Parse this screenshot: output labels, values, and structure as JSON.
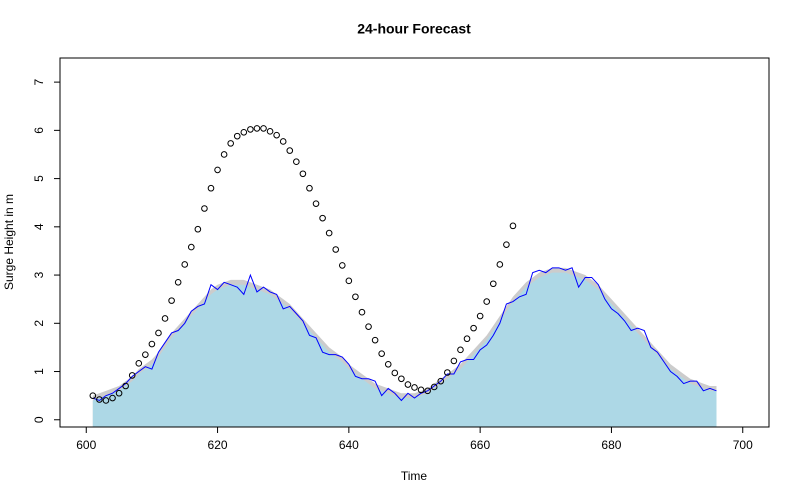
{
  "chart_data": {
    "type": "line",
    "title": "24-hour Forecast",
    "x_label": "Time",
    "y_label": "Surge Height in m",
    "xlim": [
      596,
      704
    ],
    "xticks": [
      600,
      620,
      640,
      660,
      680,
      700
    ],
    "ylim": [
      -0.15,
      7.5
    ],
    "yticks": [
      0,
      1,
      2,
      3,
      4,
      5,
      6,
      7
    ],
    "x": [
      601,
      602,
      603,
      604,
      605,
      606,
      607,
      608,
      609,
      610,
      611,
      612,
      613,
      614,
      615,
      616,
      617,
      618,
      619,
      620,
      621,
      622,
      623,
      624,
      625,
      626,
      627,
      628,
      629,
      630,
      631,
      632,
      633,
      634,
      635,
      636,
      637,
      638,
      639,
      640,
      641,
      642,
      643,
      644,
      645,
      646,
      647,
      648,
      649,
      650,
      651,
      652,
      653,
      654,
      655,
      656,
      657,
      658,
      659,
      660,
      661,
      662,
      663,
      664,
      665,
      666,
      667,
      668,
      669,
      670,
      671,
      672,
      673,
      674,
      675,
      676,
      677,
      678,
      679,
      680,
      681,
      682,
      683,
      684,
      685,
      686,
      687,
      688,
      689,
      690,
      691,
      692,
      693,
      694,
      695,
      696
    ],
    "series": [
      {
        "kind": "area",
        "color": "#cccccc",
        "values": [
          0.5,
          0.55,
          0.6,
          0.65,
          0.7,
          0.8,
          0.9,
          1.05,
          1.15,
          1.25,
          1.4,
          1.6,
          1.8,
          1.95,
          2.1,
          2.25,
          2.4,
          2.55,
          2.7,
          2.8,
          2.85,
          2.9,
          2.9,
          2.9,
          2.85,
          2.8,
          2.75,
          2.7,
          2.6,
          2.5,
          2.4,
          2.25,
          2.1,
          1.95,
          1.8,
          1.65,
          1.5,
          1.4,
          1.3,
          1.15,
          1.05,
          0.95,
          0.85,
          0.75,
          0.7,
          0.65,
          0.6,
          0.55,
          0.55,
          0.55,
          0.6,
          0.65,
          0.75,
          0.85,
          0.95,
          1.05,
          1.15,
          1.3,
          1.45,
          1.6,
          1.75,
          1.95,
          2.15,
          2.35,
          2.55,
          2.7,
          2.85,
          2.95,
          3.05,
          3.1,
          3.15,
          3.15,
          3.15,
          3.1,
          3.05,
          3.0,
          2.9,
          2.8,
          2.65,
          2.5,
          2.35,
          2.2,
          2.05,
          1.9,
          1.75,
          1.6,
          1.45,
          1.3,
          1.15,
          1.05,
          0.95,
          0.85,
          0.8,
          0.75,
          0.7,
          0.7
        ]
      },
      {
        "kind": "area",
        "color": "#add8e6",
        "values": [
          0.4,
          0.45,
          0.5,
          0.55,
          0.6,
          0.7,
          0.8,
          0.95,
          1.05,
          1.15,
          1.3,
          1.5,
          1.7,
          1.85,
          2.0,
          2.15,
          2.3,
          2.45,
          2.6,
          2.7,
          2.75,
          2.8,
          2.8,
          2.8,
          2.75,
          2.7,
          2.65,
          2.6,
          2.5,
          2.4,
          2.3,
          2.15,
          2.0,
          1.85,
          1.7,
          1.55,
          1.4,
          1.3,
          1.2,
          1.05,
          0.95,
          0.85,
          0.75,
          0.65,
          0.6,
          0.55,
          0.5,
          0.45,
          0.45,
          0.45,
          0.5,
          0.55,
          0.65,
          0.75,
          0.85,
          0.95,
          1.05,
          1.2,
          1.35,
          1.5,
          1.65,
          1.85,
          2.05,
          2.25,
          2.45,
          2.6,
          2.75,
          2.85,
          2.95,
          3.0,
          3.05,
          3.05,
          3.05,
          3.0,
          2.95,
          2.9,
          2.8,
          2.7,
          2.55,
          2.4,
          2.25,
          2.1,
          1.95,
          1.8,
          1.65,
          1.5,
          1.35,
          1.2,
          1.05,
          0.95,
          0.85,
          0.75,
          0.7,
          0.65,
          0.6,
          0.6
        ]
      },
      {
        "kind": "line",
        "color": "#0000ff",
        "values": [
          0.45,
          0.4,
          0.5,
          0.55,
          0.65,
          0.75,
          0.9,
          1.0,
          1.1,
          1.05,
          1.4,
          1.6,
          1.8,
          1.85,
          2.0,
          2.25,
          2.35,
          2.4,
          2.8,
          2.7,
          2.85,
          2.8,
          2.75,
          2.6,
          3.0,
          2.65,
          2.75,
          2.65,
          2.6,
          2.3,
          2.35,
          2.2,
          2.05,
          1.75,
          1.7,
          1.4,
          1.35,
          1.35,
          1.3,
          1.15,
          0.9,
          0.85,
          0.85,
          0.8,
          0.5,
          0.65,
          0.55,
          0.4,
          0.55,
          0.45,
          0.55,
          0.6,
          0.7,
          0.8,
          0.95,
          0.95,
          1.2,
          1.25,
          1.25,
          1.45,
          1.55,
          1.75,
          2.0,
          2.4,
          2.45,
          2.55,
          2.6,
          3.05,
          3.1,
          3.05,
          3.15,
          3.15,
          3.1,
          3.15,
          2.75,
          2.95,
          2.95,
          2.8,
          2.5,
          2.3,
          2.2,
          2.05,
          1.85,
          1.9,
          1.85,
          1.5,
          1.4,
          1.2,
          1.0,
          0.9,
          0.75,
          0.8,
          0.8,
          0.6,
          0.65,
          0.6
        ]
      },
      {
        "kind": "points",
        "color": "#000000",
        "values": [
          0.5,
          0.42,
          0.4,
          0.45,
          0.55,
          0.7,
          0.92,
          1.17,
          1.35,
          1.57,
          1.8,
          2.1,
          2.47,
          2.85,
          3.22,
          3.58,
          3.95,
          4.38,
          4.8,
          5.18,
          5.5,
          5.73,
          5.88,
          5.96,
          6.02,
          6.04,
          6.04,
          5.98,
          5.9,
          5.77,
          5.58,
          5.35,
          5.1,
          4.8,
          4.48,
          4.18,
          3.87,
          3.53,
          3.2,
          2.88,
          2.55,
          2.23,
          1.93,
          1.65,
          1.37,
          1.15,
          0.97,
          0.85,
          0.73,
          0.67,
          0.62,
          0.6,
          0.68,
          0.8,
          0.98,
          1.22,
          1.45,
          1.68,
          1.9,
          2.15,
          2.45,
          2.82,
          3.22,
          3.63,
          4.02,
          null,
          null,
          null,
          null,
          null,
          null,
          null,
          null,
          null,
          null,
          null,
          null,
          null,
          null,
          null,
          null,
          null,
          null,
          null,
          null,
          null,
          null,
          null,
          null,
          null,
          null,
          null,
          null,
          null,
          null,
          null
        ]
      }
    ]
  }
}
